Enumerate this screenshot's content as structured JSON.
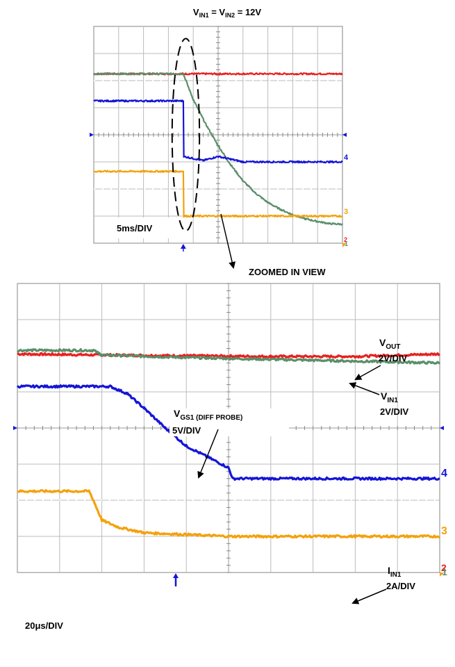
{
  "chart_data": [
    {
      "type": "line",
      "title_main": "V",
      "title_sub1": "IN1",
      "title_mid": " = V",
      "title_sub2": "IN2",
      "title_end": " = 12V",
      "timebase": "5ms/DIV",
      "grid": true,
      "x_divisions": 10,
      "y_divisions": 8,
      "colors": {
        "vout": "#e8211f",
        "vin1": "#5a8f6a",
        "vgs": "#1515d6",
        "iin": "#f4a10c"
      },
      "channel_markers": {
        "vgs": "4",
        "iin": "3",
        "vout": "2",
        "vin1": "1"
      },
      "series": [
        {
          "key": "vout",
          "x": [
            0,
            3.6,
            10
          ],
          "y": [
            6.25,
            6.25,
            6.25
          ]
        },
        {
          "key": "vin1",
          "x": [
            0,
            3.6,
            4.0,
            4.5,
            5.0,
            5.5,
            6.0,
            6.5,
            7.0,
            7.5,
            8.0,
            8.5,
            9.0,
            9.5,
            10
          ],
          "y": [
            6.25,
            6.25,
            5.3,
            4.4,
            3.6,
            2.9,
            2.3,
            1.85,
            1.5,
            1.25,
            1.05,
            0.9,
            0.8,
            0.72,
            0.7
          ]
        },
        {
          "key": "vgs",
          "x": [
            0,
            3.6,
            3.62,
            4.4,
            5.0,
            5.5,
            6.0,
            7.0,
            8.0,
            10
          ],
          "y": [
            5.25,
            5.25,
            3.2,
            3.05,
            3.2,
            3.1,
            3.0,
            3.0,
            3.0,
            3.0
          ]
        },
        {
          "key": "iin",
          "x": [
            0,
            3.6,
            3.62,
            10
          ],
          "y": [
            2.65,
            2.65,
            1.0,
            1.0
          ]
        }
      ],
      "trigger_x": 3.6,
      "ellipse": {
        "cx": 3.7,
        "cy": 4.0,
        "rx": 0.55,
        "ry": 3.55
      }
    },
    {
      "type": "line",
      "caption": "ZOOMED IN VIEW",
      "timebase": "20μs/DIV",
      "grid": true,
      "x_divisions": 10,
      "y_divisions": 8,
      "channel_markers": {
        "vgs": "4",
        "iin": "3",
        "vout": "2",
        "vin1": "1"
      },
      "series": [
        {
          "key": "vout",
          "x": [
            0,
            2,
            4,
            6,
            8,
            10
          ],
          "y": [
            6.05,
            6.02,
            6.0,
            5.98,
            5.98,
            6.05
          ]
        },
        {
          "key": "vin1",
          "x": [
            0,
            1.8,
            2.0,
            4.0,
            6.0,
            8.0,
            10
          ],
          "y": [
            6.15,
            6.15,
            6.02,
            5.95,
            5.9,
            5.85,
            5.8
          ]
        },
        {
          "key": "vgs",
          "x": [
            0,
            2.2,
            2.6,
            3.0,
            3.5,
            4.0,
            4.5,
            5.0,
            5.1,
            10
          ],
          "y": [
            5.15,
            5.15,
            4.95,
            4.55,
            4.0,
            3.5,
            3.2,
            2.9,
            2.6,
            2.6
          ]
        },
        {
          "key": "iin",
          "x": [
            0,
            1.7,
            1.8,
            2.0,
            2.4,
            3.0,
            4.0,
            5.0,
            10
          ],
          "y": [
            2.25,
            2.25,
            2.0,
            1.45,
            1.25,
            1.1,
            1.05,
            1.0,
            1.0
          ]
        }
      ],
      "trigger_x": 3.75,
      "annotations": {
        "vout_name": "V",
        "vout_sub": "OUT",
        "vout_scale": "2V/DIV",
        "vin1_name": "V",
        "vin1_sub": "IN1",
        "vin1_scale": "2V/DIV",
        "vgs_name": "V",
        "vgs_sub": "GS1 (DIFF PROBE)",
        "vgs_scale": "5V/DIV",
        "iin_name": "I",
        "iin_sub": "IN1",
        "iin_scale": "2A/DIV"
      }
    }
  ]
}
